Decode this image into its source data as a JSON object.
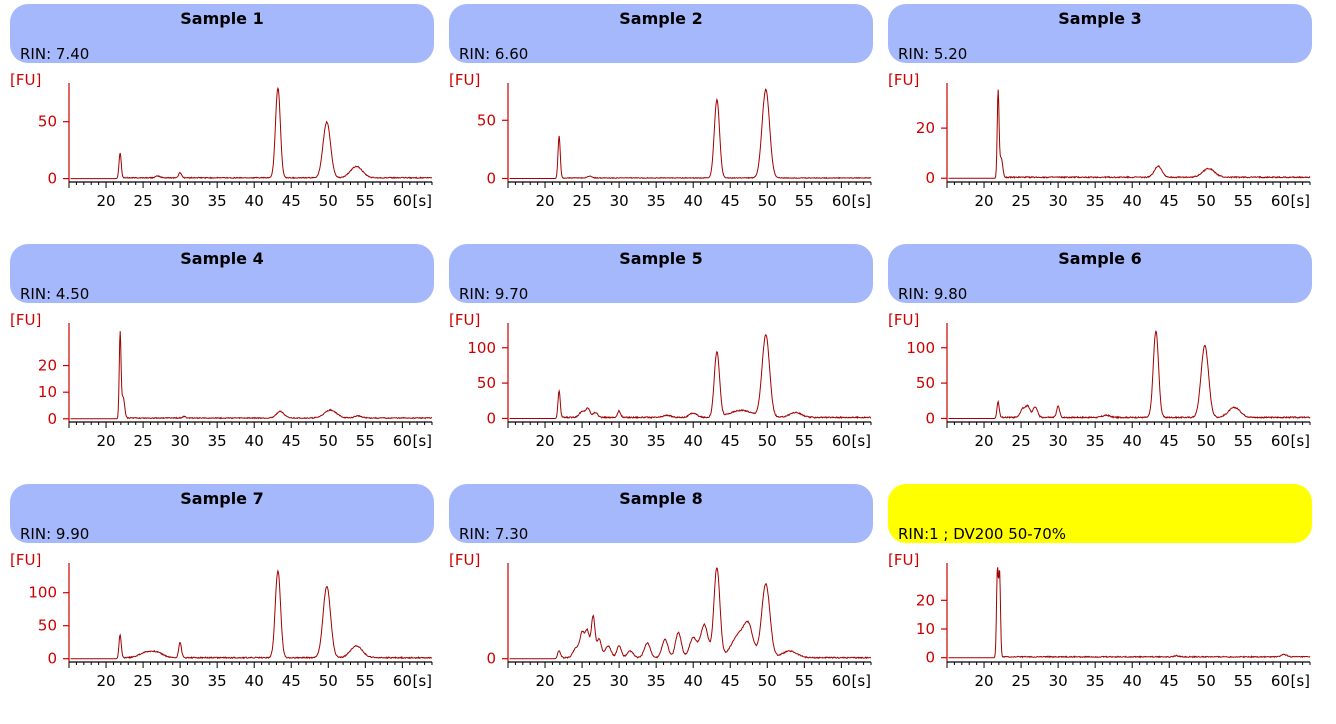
{
  "colors": {
    "header": "#a5b8fb",
    "header_highlight": "#ffff00",
    "axis": "#cc0000",
    "trace": "#a10000"
  },
  "chart_data": [
    {
      "type": "line",
      "title": "Sample 1",
      "rin_label": "RIN: 7.40",
      "ylabel": "[FU]",
      "xunit": "[s]",
      "xticks": [
        20,
        25,
        30,
        35,
        40,
        45,
        50,
        55,
        60
      ],
      "yticks": [
        0,
        50
      ],
      "xlim": [
        15,
        64
      ],
      "ylim": [
        -3,
        84
      ],
      "baseline": 0.7,
      "highlight": false,
      "peaks": [
        {
          "x": 21.9,
          "h": 22,
          "w": 0.15
        },
        {
          "x": 27,
          "h": 1.5,
          "w": 0.3
        },
        {
          "x": 30,
          "h": 4.5,
          "w": 0.2
        },
        {
          "x": 43.2,
          "h": 79,
          "w": 0.32
        },
        {
          "x": 49.8,
          "h": 49,
          "w": 0.5
        },
        {
          "x": 53.8,
          "h": 10,
          "w": 0.8
        }
      ]
    },
    {
      "type": "line",
      "title": "Sample 2",
      "rin_label": "RIN: 6.60",
      "ylabel": "[FU]",
      "xunit": "[s]",
      "xticks": [
        20,
        25,
        30,
        35,
        40,
        45,
        50,
        55,
        60
      ],
      "yticks": [
        0,
        50
      ],
      "xlim": [
        15,
        64
      ],
      "ylim": [
        -3,
        82
      ],
      "baseline": 0.5,
      "highlight": false,
      "peaks": [
        {
          "x": 21.9,
          "h": 36,
          "w": 0.15
        },
        {
          "x": 26,
          "h": 1.5,
          "w": 0.3
        },
        {
          "x": 43.2,
          "h": 67,
          "w": 0.35
        },
        {
          "x": 49.8,
          "h": 76,
          "w": 0.5
        }
      ]
    },
    {
      "type": "line",
      "title": "Sample 3",
      "rin_label": "RIN: 5.20",
      "ylabel": "[FU]",
      "xunit": "[s]",
      "xticks": [
        20,
        25,
        30,
        35,
        40,
        45,
        50,
        55,
        60
      ],
      "yticks": [
        0,
        20
      ],
      "xlim": [
        15,
        64
      ],
      "ylim": [
        -1.5,
        38
      ],
      "baseline": 0.4,
      "highlight": false,
      "peaks": [
        {
          "x": 21.9,
          "h": 34,
          "w": 0.12
        },
        {
          "x": 22.3,
          "h": 8,
          "w": 0.2
        },
        {
          "x": 43.5,
          "h": 4.5,
          "w": 0.5
        },
        {
          "x": 50.3,
          "h": 3.5,
          "w": 0.8
        }
      ]
    },
    {
      "type": "line",
      "title": "Sample 4",
      "rin_label": "RIN: 4.50",
      "ylabel": "[FU]",
      "xunit": "[s]",
      "xticks": [
        20,
        25,
        30,
        35,
        40,
        45,
        50,
        55,
        60
      ],
      "yticks": [
        0,
        10,
        20
      ],
      "xlim": [
        15,
        64
      ],
      "ylim": [
        -1.2,
        36
      ],
      "baseline": 0.3,
      "highlight": false,
      "peaks": [
        {
          "x": 21.9,
          "h": 31.5,
          "w": 0.12
        },
        {
          "x": 22.3,
          "h": 8,
          "w": 0.2
        },
        {
          "x": 30.5,
          "h": 0.6,
          "w": 0.2
        },
        {
          "x": 43.5,
          "h": 2.5,
          "w": 0.5
        },
        {
          "x": 50.3,
          "h": 3,
          "w": 0.8
        },
        {
          "x": 54,
          "h": 0.8,
          "w": 0.5
        }
      ]
    },
    {
      "type": "line",
      "title": "Sample 5",
      "rin_label": "RIN: 9.70",
      "ylabel": "[FU]",
      "xunit": "[s]",
      "xticks": [
        20,
        25,
        30,
        35,
        40,
        45,
        50,
        55,
        60
      ],
      "yticks": [
        0,
        50,
        100
      ],
      "xlim": [
        15,
        64
      ],
      "ylim": [
        -5,
        135
      ],
      "baseline": 1.5,
      "highlight": false,
      "peaks": [
        {
          "x": 21.9,
          "h": 38,
          "w": 0.15
        },
        {
          "x": 25,
          "h": 8,
          "w": 0.4
        },
        {
          "x": 25.8,
          "h": 12,
          "w": 0.3
        },
        {
          "x": 26.8,
          "h": 7,
          "w": 0.3
        },
        {
          "x": 30,
          "h": 9,
          "w": 0.2
        },
        {
          "x": 36.5,
          "h": 3,
          "w": 0.5
        },
        {
          "x": 40,
          "h": 6,
          "w": 0.5
        },
        {
          "x": 43.2,
          "h": 92,
          "w": 0.35
        },
        {
          "x": 46.5,
          "h": 10,
          "w": 1.5
        },
        {
          "x": 49.8,
          "h": 116,
          "w": 0.5
        },
        {
          "x": 53.8,
          "h": 7,
          "w": 0.8
        }
      ]
    },
    {
      "type": "line",
      "title": "Sample 6",
      "rin_label": "RIN: 9.80",
      "ylabel": "[FU]",
      "xunit": "[s]",
      "xticks": [
        20,
        25,
        30,
        35,
        40,
        45,
        50,
        55,
        60
      ],
      "yticks": [
        0,
        50,
        100
      ],
      "xlim": [
        15,
        64
      ],
      "ylim": [
        -5,
        135
      ],
      "baseline": 1.5,
      "highlight": false,
      "peaks": [
        {
          "x": 21.9,
          "h": 22,
          "w": 0.15
        },
        {
          "x": 25.2,
          "h": 12,
          "w": 0.3
        },
        {
          "x": 25.9,
          "h": 16,
          "w": 0.3
        },
        {
          "x": 26.9,
          "h": 15,
          "w": 0.3
        },
        {
          "x": 30,
          "h": 16,
          "w": 0.2
        },
        {
          "x": 36.5,
          "h": 3,
          "w": 0.5
        },
        {
          "x": 43.2,
          "h": 122,
          "w": 0.35
        },
        {
          "x": 49.8,
          "h": 102,
          "w": 0.5
        },
        {
          "x": 53.8,
          "h": 14,
          "w": 0.8
        }
      ]
    },
    {
      "type": "line",
      "title": "Sample 7",
      "rin_label": "RIN: 9.90",
      "ylabel": "[FU]",
      "xunit": "[s]",
      "xticks": [
        20,
        25,
        30,
        35,
        40,
        45,
        50,
        55,
        60
      ],
      "yticks": [
        0,
        50,
        100
      ],
      "xlim": [
        15,
        64
      ],
      "ylim": [
        -5,
        145
      ],
      "baseline": 1.5,
      "highlight": false,
      "peaks": [
        {
          "x": 21.9,
          "h": 35,
          "w": 0.15
        },
        {
          "x": 25.5,
          "h": 8,
          "w": 1
        },
        {
          "x": 27,
          "h": 6,
          "w": 0.8
        },
        {
          "x": 30,
          "h": 24,
          "w": 0.18
        },
        {
          "x": 43.2,
          "h": 132,
          "w": 0.35
        },
        {
          "x": 49.8,
          "h": 108,
          "w": 0.5
        },
        {
          "x": 53.8,
          "h": 18,
          "w": 0.8
        }
      ]
    },
    {
      "type": "line",
      "title": "Sample 8",
      "rin_label": "RIN: 7.30",
      "ylabel": "[FU]",
      "xunit": "[s]",
      "xticks": [
        20,
        25,
        30,
        35,
        40,
        45,
        50,
        55,
        60
      ],
      "yticks": [
        0
      ],
      "xlim": [
        15,
        64
      ],
      "ylim": [
        -5,
        145
      ],
      "baseline": 1.5,
      "highlight": false,
      "peaks": [
        {
          "x": 21.9,
          "h": 10,
          "w": 0.2
        },
        {
          "x": 24.2,
          "h": 15,
          "w": 0.4
        },
        {
          "x": 25,
          "h": 35,
          "w": 0.3
        },
        {
          "x": 25.7,
          "h": 40,
          "w": 0.3
        },
        {
          "x": 26.5,
          "h": 62,
          "w": 0.25
        },
        {
          "x": 27.3,
          "h": 28,
          "w": 0.3
        },
        {
          "x": 28.5,
          "h": 18,
          "w": 0.4
        },
        {
          "x": 30,
          "h": 18,
          "w": 0.3
        },
        {
          "x": 31.5,
          "h": 10,
          "w": 0.4
        },
        {
          "x": 33.8,
          "h": 22,
          "w": 0.4
        },
        {
          "x": 36.2,
          "h": 28,
          "w": 0.4
        },
        {
          "x": 38,
          "h": 38,
          "w": 0.4
        },
        {
          "x": 40,
          "h": 30,
          "w": 0.5
        },
        {
          "x": 41.5,
          "h": 50,
          "w": 0.5
        },
        {
          "x": 43.2,
          "h": 136,
          "w": 0.4
        },
        {
          "x": 46.2,
          "h": 35,
          "w": 1
        },
        {
          "x": 47.5,
          "h": 38,
          "w": 0.6
        },
        {
          "x": 49.8,
          "h": 112,
          "w": 0.55
        },
        {
          "x": 53,
          "h": 10,
          "w": 1
        }
      ]
    },
    {
      "type": "line",
      "title": "",
      "rin_label": "RIN:1 ; DV200 50-70%",
      "ylabel": "[FU]",
      "xunit": "[s]",
      "xticks": [
        20,
        25,
        30,
        35,
        40,
        45,
        50,
        55,
        60
      ],
      "yticks": [
        0,
        10,
        20
      ],
      "xlim": [
        15,
        64
      ],
      "ylim": [
        -1.5,
        33
      ],
      "baseline": 0.3,
      "highlight": true,
      "peaks": [
        {
          "x": 21.8,
          "h": 30,
          "w": 0.12
        },
        {
          "x": 22.1,
          "h": 29,
          "w": 0.12
        },
        {
          "x": 46,
          "h": 0.4,
          "w": 0.3
        },
        {
          "x": 60.5,
          "h": 0.8,
          "w": 0.4
        }
      ]
    }
  ]
}
